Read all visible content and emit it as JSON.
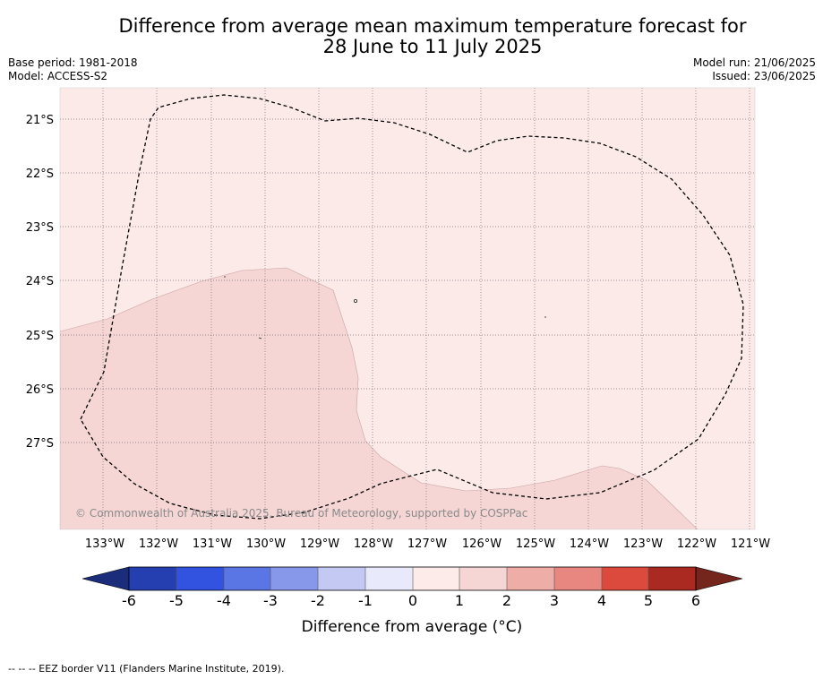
{
  "title": {
    "line1": "Difference from average mean maximum temperature forecast for",
    "line2": "28 June to 11 July 2025"
  },
  "info_left": {
    "base_period": "Base period: 1981-2018",
    "model": "Model: ACCESS-S2"
  },
  "info_right": {
    "model_run": "Model run: 21/06/2025",
    "issued": "Issued: 23/06/2025"
  },
  "map": {
    "longitude_labels": [
      "133°W",
      "132°W",
      "131°W",
      "130°W",
      "129°W",
      "128°W",
      "127°W",
      "126°W",
      "125°W",
      "124°W",
      "123°W",
      "122°W",
      "121°W"
    ],
    "latitude_labels": [
      "21°S",
      "22°S",
      "23°S",
      "24°S",
      "25°S",
      "26°S",
      "27°S"
    ],
    "copyright": "© Commonwealth of Australia 2025, Bureau of Meteorology, supported by COSPPac",
    "region_anomaly_classes": [
      {
        "region": "northern",
        "range": "0 to 1",
        "color": "#fbeae8"
      },
      {
        "region": "southwest",
        "range": "1 to 2",
        "color": "#f5d6d5"
      }
    ],
    "border_line_color": "#000000"
  },
  "colorbar": {
    "ticks": [
      "-6",
      "-5",
      "-4",
      "-3",
      "-2",
      "-1",
      "0",
      "1",
      "2",
      "3",
      "4",
      "5",
      "6"
    ],
    "colors": [
      "#253fb0",
      "#3153e0",
      "#5a76e5",
      "#8797ea",
      "#c3c9f3",
      "#e8eafb",
      "#fcebe9",
      "#f5d6d5",
      "#eeada7",
      "#e78780",
      "#dc4a3e",
      "#aa2a22"
    ],
    "under_color": "#1b2c7a",
    "over_color": "#74251c",
    "label": "Difference from average (°C)"
  },
  "footnote": "-- -- -- EEZ border V11 (Flanders Marine Institute, 2019)."
}
